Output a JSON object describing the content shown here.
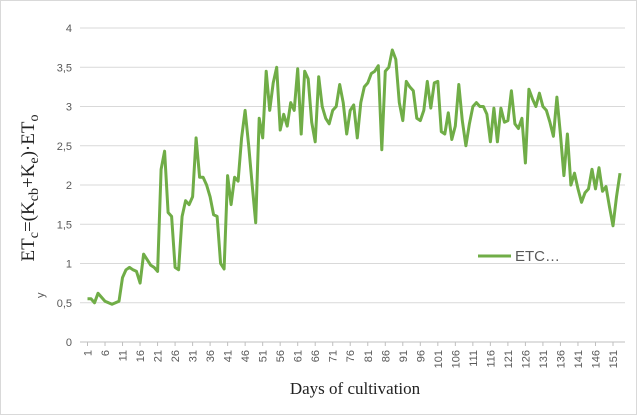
{
  "chart_data": {
    "type": "line",
    "y_label_parts": [
      {
        "text": "ET"
      },
      {
        "text": "c",
        "sub": true
      },
      {
        "text": "=(K"
      },
      {
        "text": "cb",
        "sub": true
      },
      {
        "text": "+K"
      },
      {
        "text": "e",
        "sub": true
      },
      {
        "text": ")·ET"
      },
      {
        "text": "o",
        "sub": true
      }
    ],
    "y_marker": "y",
    "x_label": "Days of cultivation",
    "x": [
      1,
      2,
      3,
      4,
      5,
      6,
      7,
      8,
      9,
      10,
      11,
      12,
      13,
      14,
      15,
      16,
      17,
      18,
      19,
      20,
      21,
      22,
      23,
      24,
      25,
      26,
      27,
      28,
      29,
      30,
      31,
      32,
      33,
      34,
      35,
      36,
      37,
      38,
      39,
      40,
      41,
      42,
      43,
      44,
      45,
      46,
      47,
      48,
      49,
      50,
      51,
      52,
      53,
      54,
      55,
      56,
      57,
      58,
      59,
      60,
      61,
      62,
      63,
      64,
      65,
      66,
      67,
      68,
      69,
      70,
      71,
      72,
      73,
      74,
      75,
      76,
      77,
      78,
      79,
      80,
      81,
      82,
      83,
      84,
      85,
      86,
      87,
      88,
      89,
      90,
      91,
      92,
      93,
      94,
      95,
      96,
      97,
      98,
      99,
      100,
      101,
      102,
      103,
      104,
      105,
      106,
      107,
      108,
      109,
      110,
      111,
      112,
      113,
      114,
      115,
      116,
      117,
      118,
      119,
      120,
      121,
      122,
      123,
      124,
      125,
      126,
      127,
      128,
      129,
      130,
      131,
      132,
      133,
      134,
      135,
      136,
      137,
      138,
      139,
      140,
      141,
      142,
      143,
      144,
      145,
      146,
      147,
      148,
      149,
      150,
      151,
      152,
      153
    ],
    "series": [
      {
        "name": "ETC…",
        "color": "#70ad47",
        "values": [
          0.55,
          0.55,
          0.5,
          0.62,
          0.57,
          0.52,
          0.5,
          0.48,
          0.5,
          0.52,
          0.82,
          0.92,
          0.95,
          0.92,
          0.9,
          0.75,
          1.12,
          1.05,
          0.98,
          0.95,
          0.9,
          2.2,
          2.43,
          1.65,
          1.6,
          0.95,
          0.92,
          1.6,
          1.8,
          1.75,
          1.85,
          2.6,
          2.1,
          2.1,
          2.0,
          1.85,
          1.62,
          1.6,
          1.0,
          0.93,
          2.12,
          1.75,
          2.1,
          2.05,
          2.6,
          2.95,
          2.5,
          2.0,
          1.52,
          2.85,
          2.6,
          3.45,
          2.95,
          3.3,
          3.5,
          2.7,
          2.9,
          2.75,
          3.05,
          2.95,
          3.48,
          2.65,
          3.45,
          3.35,
          2.8,
          2.55,
          3.38,
          3.0,
          2.85,
          2.78,
          2.95,
          3.0,
          3.28,
          3.05,
          2.65,
          2.95,
          3.02,
          2.6,
          3.05,
          3.25,
          3.3,
          3.42,
          3.45,
          3.52,
          2.45,
          3.45,
          3.5,
          3.72,
          3.6,
          3.05,
          2.82,
          3.32,
          3.25,
          3.2,
          2.85,
          2.82,
          2.95,
          3.32,
          2.98,
          3.3,
          3.32,
          2.68,
          2.65,
          2.92,
          2.58,
          2.75,
          3.28,
          2.82,
          2.5,
          2.78,
          3.0,
          3.05,
          3.0,
          3.0,
          2.9,
          2.55,
          2.98,
          2.55,
          2.98,
          2.8,
          2.82,
          3.2,
          2.78,
          2.72,
          2.85,
          2.28,
          3.22,
          3.1,
          3.0,
          3.17,
          3.0,
          2.95,
          2.8,
          2.62,
          3.12,
          2.65,
          2.12,
          2.65,
          2.0,
          2.15,
          1.95,
          1.78,
          1.9,
          1.95,
          2.2,
          1.95,
          2.22,
          1.92,
          1.98,
          1.72,
          1.48,
          1.85,
          2.15
        ]
      }
    ],
    "xlim": [
      0,
      155
    ],
    "xticks": [
      1,
      6,
      11,
      16,
      21,
      26,
      31,
      36,
      41,
      46,
      51,
      56,
      61,
      66,
      71,
      76,
      81,
      86,
      91,
      96,
      101,
      106,
      111,
      116,
      121,
      126,
      131,
      136,
      141,
      146,
      151
    ],
    "ylim": [
      0,
      4
    ],
    "yticks": [
      0,
      {
        "value": 0.5,
        "label": "0,5"
      },
      1,
      {
        "value": 1.5,
        "label": "1,5"
      },
      2,
      {
        "value": 2.5,
        "label": "2,5"
      },
      3,
      {
        "value": 3.5,
        "label": "3,5"
      },
      4
    ],
    "grid": true
  }
}
